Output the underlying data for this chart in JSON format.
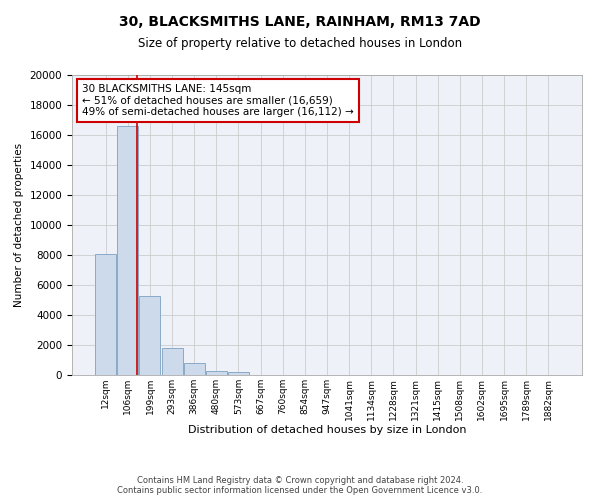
{
  "title_line1": "30, BLACKSMITHS LANE, RAINHAM, RM13 7AD",
  "title_line2": "Size of property relative to detached houses in London",
  "xlabel": "Distribution of detached houses by size in London",
  "ylabel": "Number of detached properties",
  "bar_color": "#cddaeb",
  "bar_edgecolor": "#8aaac8",
  "bar_linewidth": 0.7,
  "categories": [
    "12sqm",
    "106sqm",
    "199sqm",
    "293sqm",
    "386sqm",
    "480sqm",
    "573sqm",
    "667sqm",
    "760sqm",
    "854sqm",
    "947sqm",
    "1041sqm",
    "1134sqm",
    "1228sqm",
    "1321sqm",
    "1415sqm",
    "1508sqm",
    "1602sqm",
    "1695sqm",
    "1789sqm",
    "1882sqm"
  ],
  "values": [
    8100,
    16600,
    5300,
    1800,
    800,
    300,
    200,
    0,
    0,
    0,
    0,
    0,
    0,
    0,
    0,
    0,
    0,
    0,
    0,
    0,
    0
  ],
  "ylim": [
    0,
    20000
  ],
  "yticks": [
    0,
    2000,
    4000,
    6000,
    8000,
    10000,
    12000,
    14000,
    16000,
    18000,
    20000
  ],
  "red_line_x": 1.4,
  "annotation_line1": "30 BLACKSMITHS LANE: 145sqm",
  "annotation_line2": "← 51% of detached houses are smaller (16,659)",
  "annotation_line3": "49% of semi-detached houses are larger (16,112) →",
  "annotation_box_color": "#ffffff",
  "annotation_box_edgecolor": "#cc0000",
  "grid_color": "#cccccc",
  "background_color": "#eef2f8",
  "footer_line1": "Contains HM Land Registry data © Crown copyright and database right 2024.",
  "footer_line2": "Contains public sector information licensed under the Open Government Licence v3.0."
}
